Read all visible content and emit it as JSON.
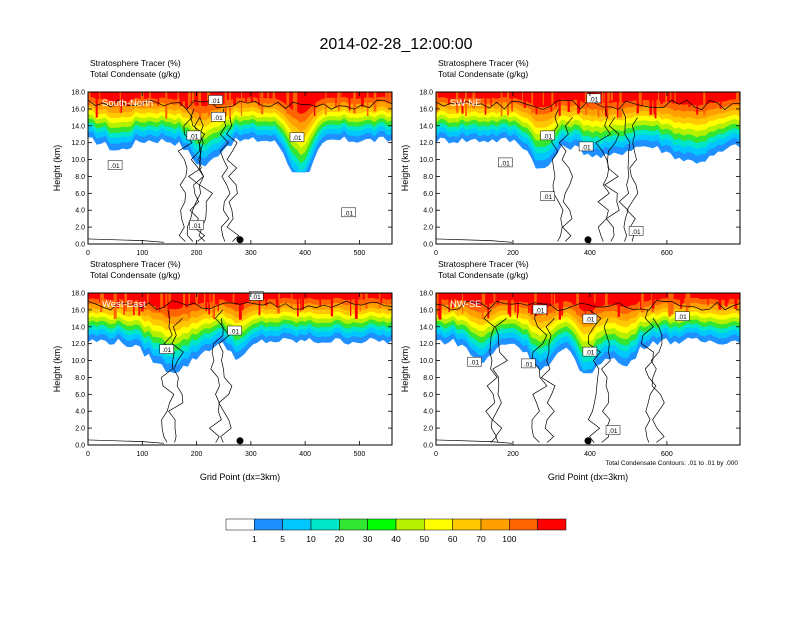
{
  "figure": {
    "title": "2014-02-28_12:00:00",
    "footnote": "Total Condensate Contours: .01 to .01 by .000"
  },
  "panels": [
    {
      "name": "South-North",
      "header1": "Stratosphere Tracer   (%)",
      "header2": "Total Condensate   (g/kg)",
      "xmax": 560,
      "xticks": [
        "0",
        "100",
        "200",
        "300",
        "400",
        "500"
      ],
      "xtickvals": [
        0,
        100,
        200,
        300,
        400,
        500
      ],
      "marker_x": 280,
      "show_xlabel": false,
      "contour_labels": [
        {
          "x": 50,
          "y": 9.3,
          "t": ".01"
        },
        {
          "x": 195,
          "y": 12.8,
          "t": ".01"
        },
        {
          "x": 240,
          "y": 15.0,
          "t": ".01"
        },
        {
          "x": 235,
          "y": 17.0,
          "t": ".01"
        },
        {
          "x": 385,
          "y": 12.6,
          "t": ".01"
        },
        {
          "x": 480,
          "y": 3.7,
          "t": ".01"
        },
        {
          "x": 200,
          "y": 2.2,
          "t": ".01"
        }
      ]
    },
    {
      "name": "SW-NE",
      "header1": "Stratosphere Tracer   (%)",
      "header2": "Total Condensate   (g/kg)",
      "xmax": 790,
      "xticks": [
        "0",
        "200",
        "400",
        "600"
      ],
      "xtickvals": [
        0,
        200,
        400,
        600
      ],
      "marker_x": 395,
      "show_xlabel": false,
      "contour_labels": [
        {
          "x": 180,
          "y": 9.6,
          "t": ".01"
        },
        {
          "x": 290,
          "y": 12.8,
          "t": ".01"
        },
        {
          "x": 390,
          "y": 11.5,
          "t": ".01"
        },
        {
          "x": 290,
          "y": 5.6,
          "t": ".01"
        },
        {
          "x": 520,
          "y": 1.5,
          "t": ".01"
        },
        {
          "x": 410,
          "y": 17.2,
          "t": ".01"
        }
      ]
    },
    {
      "name": "West-East",
      "header1": "Stratosphere Tracer   (%)",
      "header2": "Total Condensate   (g/kg)",
      "xmax": 560,
      "xticks": [
        "0",
        "100",
        "200",
        "300",
        "400",
        "500"
      ],
      "xtickvals": [
        0,
        100,
        200,
        300,
        400,
        500
      ],
      "marker_x": 280,
      "show_xlabel": true,
      "contour_labels": [
        {
          "x": 145,
          "y": 11.3,
          "t": ".01"
        },
        {
          "x": 270,
          "y": 13.5,
          "t": ".01"
        },
        {
          "x": 310,
          "y": 17.6,
          "t": ".01"
        }
      ]
    },
    {
      "name": "NW-SE",
      "header1": "Stratosphere Tracer   (%)",
      "header2": "Total Condensate   (g/kg)",
      "xmax": 790,
      "xticks": [
        "0",
        "200",
        "400",
        "600"
      ],
      "xtickvals": [
        0,
        200,
        400,
        600
      ],
      "marker_x": 395,
      "show_xlabel": true,
      "contour_labels": [
        {
          "x": 100,
          "y": 9.8,
          "t": ".01"
        },
        {
          "x": 240,
          "y": 9.6,
          "t": ".01"
        },
        {
          "x": 400,
          "y": 14.9,
          "t": ".01"
        },
        {
          "x": 400,
          "y": 11.0,
          "t": ".01"
        },
        {
          "x": 640,
          "y": 15.2,
          "t": ".01"
        },
        {
          "x": 460,
          "y": 1.7,
          "t": ".01"
        },
        {
          "x": 270,
          "y": 16.0,
          "t": ".01"
        }
      ]
    }
  ],
  "axes": {
    "ylabel": "Height (km)",
    "xlabel": "Grid Point (dx=3km)",
    "ylim": [
      0,
      18
    ],
    "yticks": [
      "0.0",
      "2.0",
      "4.0",
      "6.0",
      "8.0",
      "10.0",
      "12.0",
      "14.0",
      "16.0",
      "18.0"
    ],
    "ytickvals": [
      0,
      2,
      4,
      6,
      8,
      10,
      12,
      14,
      16,
      18
    ]
  },
  "colorbar": {
    "labels": [
      "1",
      "5",
      "10",
      "20",
      "30",
      "40",
      "50",
      "60",
      "70",
      "100"
    ],
    "colors": [
      "#ffffff",
      "#1e90ff",
      "#00c8ff",
      "#00e6c8",
      "#32e632",
      "#00ff00",
      "#b4f000",
      "#ffff00",
      "#ffc800",
      "#ffa000",
      "#ff6400",
      "#ff0000"
    ]
  },
  "chart_data": {
    "type": "heatmap",
    "title": "2014-02-28_12:00:00",
    "variable_fill": "Stratosphere Tracer (%)",
    "variable_contour": "Total Condensate (g/kg)",
    "levels": [
      1,
      5,
      10,
      20,
      30,
      40,
      50,
      60,
      70,
      100
    ],
    "contour_level": 0.01,
    "ylim": [
      0,
      18
    ],
    "panels": [
      "South-North",
      "SW-NE",
      "West-East",
      "NW-SE"
    ]
  }
}
